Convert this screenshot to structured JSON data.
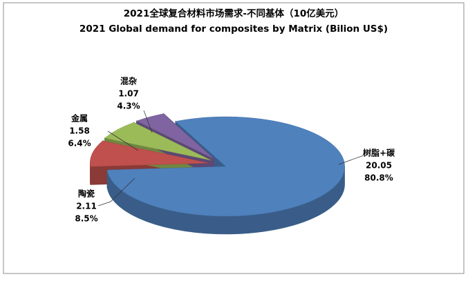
{
  "chart_data": {
    "type": "pie3d",
    "title": "2021全球复合材料市场需求-不同基体（10亿美元）",
    "subtitle": "2021 Global demand for composites by Matrix (Bilion US$)",
    "categories": [
      "树脂+碳",
      "陶瓷",
      "金属",
      "混杂"
    ],
    "values": [
      20.05,
      2.11,
      1.58,
      1.07
    ],
    "percent_labels": [
      "80.8%",
      "8.5%",
      "6.4%",
      "4.3%"
    ],
    "colors": [
      "#4f81bd",
      "#c0504d",
      "#9bbb59",
      "#8064a2"
    ]
  }
}
